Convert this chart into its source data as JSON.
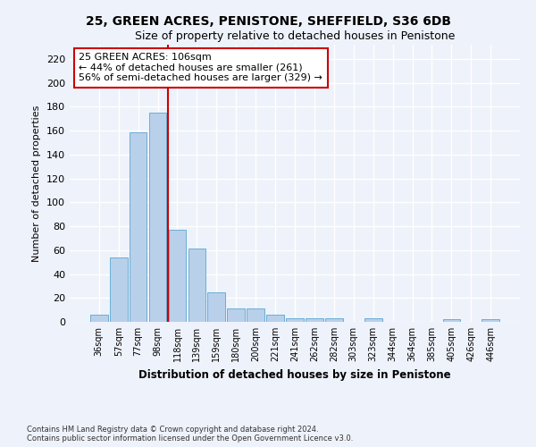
{
  "title1": "25, GREEN ACRES, PENISTONE, SHEFFIELD, S36 6DB",
  "title2": "Size of property relative to detached houses in Penistone",
  "xlabel": "Distribution of detached houses by size in Penistone",
  "ylabel": "Number of detached properties",
  "categories": [
    "36sqm",
    "57sqm",
    "77sqm",
    "98sqm",
    "118sqm",
    "139sqm",
    "159sqm",
    "180sqm",
    "200sqm",
    "221sqm",
    "241sqm",
    "262sqm",
    "282sqm",
    "303sqm",
    "323sqm",
    "344sqm",
    "364sqm",
    "385sqm",
    "405sqm",
    "426sqm",
    "446sqm"
  ],
  "values": [
    6,
    54,
    159,
    175,
    77,
    61,
    25,
    11,
    11,
    6,
    3,
    3,
    3,
    0,
    3,
    0,
    0,
    0,
    2,
    0,
    2
  ],
  "bar_color": "#b8d0ea",
  "bar_edge_color": "#6baed6",
  "vline_x": 3.5,
  "vline_color": "#cc0000",
  "annotation_text": "25 GREEN ACRES: 106sqm\n← 44% of detached houses are smaller (261)\n56% of semi-detached houses are larger (329) →",
  "annotation_box_color": "#ffffff",
  "annotation_box_edgecolor": "#cc0000",
  "ylim": [
    0,
    232
  ],
  "yticks": [
    0,
    20,
    40,
    60,
    80,
    100,
    120,
    140,
    160,
    180,
    200,
    220
  ],
  "footer": "Contains HM Land Registry data © Crown copyright and database right 2024.\nContains public sector information licensed under the Open Government Licence v3.0.",
  "background_color": "#eef2fa",
  "grid_color": "#ffffff"
}
